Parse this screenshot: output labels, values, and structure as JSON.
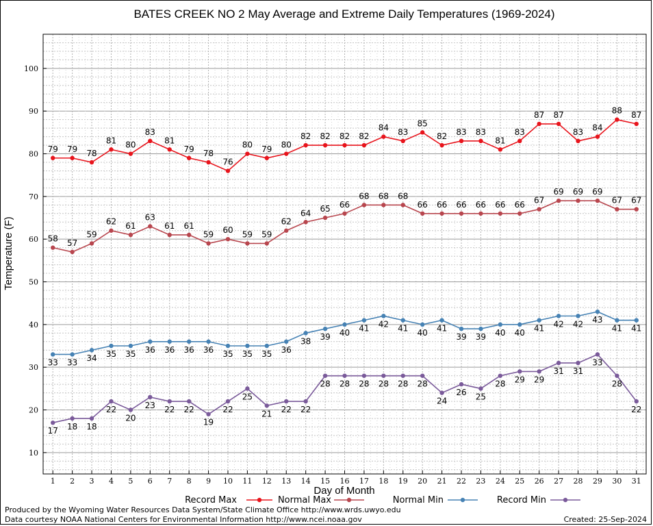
{
  "chart_data": {
    "type": "line",
    "title": "BATES CREEK NO 2 May Average and Extreme Daily Temperatures (1969-2024)",
    "xlabel": "Day of Month",
    "ylabel": "Temperature (F)",
    "ylim": [
      5,
      108
    ],
    "xlim": [
      0.5,
      31.5
    ],
    "y_ticks": [
      10,
      20,
      30,
      40,
      50,
      60,
      70,
      80,
      90,
      100
    ],
    "grid": true,
    "legend_placement": "bottom",
    "x": [
      1,
      2,
      3,
      4,
      5,
      6,
      7,
      8,
      9,
      10,
      11,
      12,
      13,
      14,
      15,
      16,
      17,
      18,
      19,
      20,
      21,
      22,
      23,
      24,
      25,
      26,
      27,
      28,
      29,
      30,
      31
    ],
    "series": [
      {
        "name": "Record Max",
        "color": "#e8141c",
        "label_pos": "above",
        "values": [
          79,
          79,
          78,
          81,
          80,
          83,
          81,
          79,
          78,
          76,
          80,
          79,
          80,
          82,
          82,
          82,
          82,
          84,
          83,
          85,
          82,
          83,
          83,
          81,
          83,
          87,
          87,
          83,
          84,
          88,
          87
        ]
      },
      {
        "name": "Normal Max",
        "color": "#b8464e",
        "label_pos": "above",
        "values": [
          58,
          57,
          59,
          62,
          61,
          63,
          61,
          61,
          59,
          60,
          59,
          59,
          62,
          64,
          65,
          66,
          68,
          68,
          68,
          66,
          66,
          66,
          66,
          66,
          66,
          67,
          69,
          69,
          69,
          67,
          67
        ]
      },
      {
        "name": "Normal Min",
        "color": "#4682b4",
        "label_pos": "below",
        "values": [
          33,
          33,
          34,
          35,
          35,
          36,
          36,
          36,
          36,
          35,
          35,
          35,
          36,
          38,
          39,
          40,
          41,
          42,
          41,
          40,
          41,
          39,
          39,
          40,
          40,
          41,
          42,
          42,
          43,
          41,
          41
        ]
      },
      {
        "name": "Record Min",
        "color": "#7a5a9a",
        "label_pos": "below",
        "values": [
          17,
          18,
          18,
          22,
          20,
          23,
          22,
          22,
          19,
          22,
          25,
          21,
          22,
          22,
          28,
          28,
          28,
          28,
          28,
          28,
          24,
          26,
          25,
          28,
          29,
          29,
          31,
          31,
          33,
          28,
          22
        ]
      }
    ]
  },
  "footer": {
    "produced_by": "Produced by the Wyoming Water Resources Data System/State Climate Office http://www.wrds.uwyo.edu",
    "data_courtesy": "Data courtesy NOAA National Centers for Environmental Information http://www.ncei.noaa.gov",
    "created": "Created: 25-Sep-2024"
  }
}
